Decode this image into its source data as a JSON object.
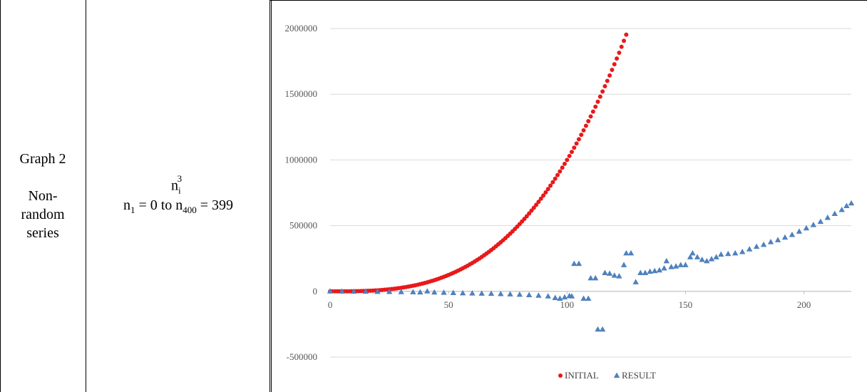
{
  "row": {
    "graph_label": "Graph 2",
    "series_kind_lines": [
      "Non-",
      "random",
      "series"
    ],
    "formula_base": "n",
    "formula_index": "i",
    "formula_exponent": "3",
    "range_prefix": "n",
    "range_start_index": "1",
    "range_mid": " = 0 to n",
    "range_end_index": "400",
    "range_suffix": " = 399"
  },
  "chart_data": {
    "type": "scatter",
    "title": "",
    "xlabel": "",
    "ylabel": "",
    "xlim": [
      0,
      220
    ],
    "ylim": [
      -500000,
      2000000
    ],
    "x_ticks": [
      0,
      50,
      100,
      150,
      200
    ],
    "x_tick_labels": [
      "0",
      "50",
      "100",
      "150",
      "200"
    ],
    "y_ticks": [
      -500000,
      0,
      500000,
      1000000,
      1500000,
      2000000
    ],
    "y_tick_labels": [
      "-500000",
      "0",
      "500000",
      "1000000",
      "1500000",
      "2000000"
    ],
    "grid": true,
    "legend_position": "bottom",
    "series": [
      {
        "name": "INITIAL",
        "marker": "circle",
        "color": "#e8191b",
        "formula": "y = x^3",
        "x_start": 0,
        "x_end": 125,
        "x_step": 1
      },
      {
        "name": "RESULT",
        "marker": "triangle",
        "color": "#4f81bd",
        "points": [
          [
            0,
            0
          ],
          [
            5,
            -1000
          ],
          [
            10,
            -1500
          ],
          [
            15,
            -2000
          ],
          [
            20,
            -3000
          ],
          [
            25,
            -4000
          ],
          [
            30,
            -5000
          ],
          [
            35,
            -6000
          ],
          [
            38,
            -7000
          ],
          [
            41,
            0
          ],
          [
            44,
            -8000
          ],
          [
            48,
            -10000
          ],
          [
            52,
            -12000
          ],
          [
            56,
            -14000
          ],
          [
            60,
            -15000
          ],
          [
            64,
            -17000
          ],
          [
            68,
            -18000
          ],
          [
            72,
            -20000
          ],
          [
            76,
            -22000
          ],
          [
            80,
            -25000
          ],
          [
            84,
            -28000
          ],
          [
            88,
            -32000
          ],
          [
            92,
            -38000
          ],
          [
            95,
            -50000
          ],
          [
            97,
            -55000
          ],
          [
            99,
            -45000
          ],
          [
            101,
            -35000
          ],
          [
            102,
            -38000
          ],
          [
            103,
            210000
          ],
          [
            105,
            210000
          ],
          [
            107,
            -55000
          ],
          [
            109,
            -55000
          ],
          [
            110,
            100000
          ],
          [
            112,
            100000
          ],
          [
            113,
            -290000
          ],
          [
            115,
            -290000
          ],
          [
            116,
            140000
          ],
          [
            118,
            135000
          ],
          [
            120,
            120000
          ],
          [
            122,
            115000
          ],
          [
            124,
            200000
          ],
          [
            125,
            290000
          ],
          [
            127,
            290000
          ],
          [
            129,
            70000
          ],
          [
            131,
            140000
          ],
          [
            133,
            140000
          ],
          [
            135,
            150000
          ],
          [
            137,
            155000
          ],
          [
            139,
            160000
          ],
          [
            141,
            175000
          ],
          [
            142,
            230000
          ],
          [
            144,
            185000
          ],
          [
            146,
            190000
          ],
          [
            148,
            200000
          ],
          [
            150,
            200000
          ],
          [
            152,
            260000
          ],
          [
            153,
            290000
          ],
          [
            155,
            260000
          ],
          [
            157,
            240000
          ],
          [
            159,
            230000
          ],
          [
            161,
            245000
          ],
          [
            163,
            260000
          ],
          [
            165,
            280000
          ],
          [
            168,
            285000
          ],
          [
            171,
            290000
          ],
          [
            174,
            300000
          ],
          [
            177,
            320000
          ],
          [
            180,
            340000
          ],
          [
            183,
            355000
          ],
          [
            186,
            375000
          ],
          [
            189,
            390000
          ],
          [
            192,
            410000
          ],
          [
            195,
            430000
          ],
          [
            198,
            455000
          ],
          [
            201,
            480000
          ],
          [
            204,
            505000
          ],
          [
            207,
            530000
          ],
          [
            210,
            560000
          ],
          [
            213,
            590000
          ],
          [
            216,
            620000
          ],
          [
            218,
            650000
          ],
          [
            220,
            670000
          ]
        ]
      }
    ]
  }
}
